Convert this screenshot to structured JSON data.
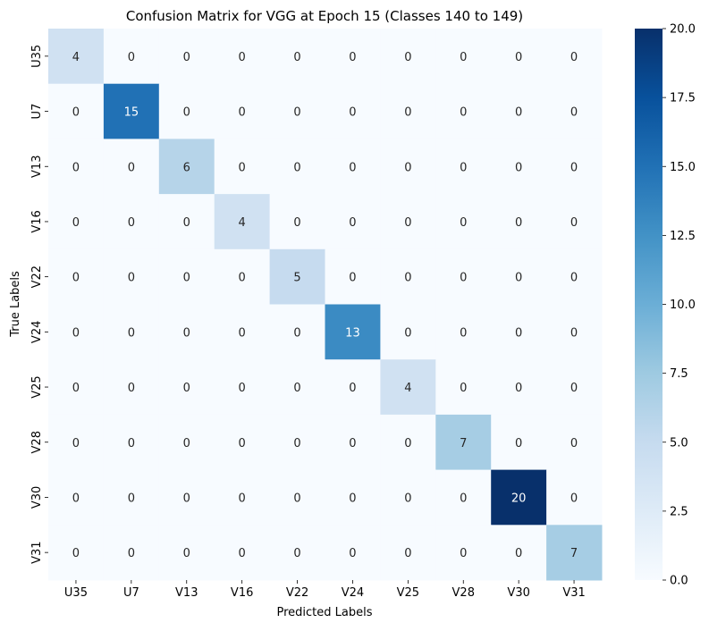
{
  "chart_data": {
    "type": "heatmap",
    "title": "Confusion Matrix for VGG at Epoch 15 (Classes 140 to 149)",
    "xlabel": "Predicted Labels",
    "ylabel": "True Labels",
    "x_categories": [
      "U35",
      "U7",
      "V13",
      "V16",
      "V22",
      "V24",
      "V25",
      "V28",
      "V30",
      "V31"
    ],
    "y_categories": [
      "U35",
      "U7",
      "V13",
      "V16",
      "V22",
      "V24",
      "V25",
      "V28",
      "V30",
      "V31"
    ],
    "values": [
      [
        4,
        0,
        0,
        0,
        0,
        0,
        0,
        0,
        0,
        0
      ],
      [
        0,
        15,
        0,
        0,
        0,
        0,
        0,
        0,
        0,
        0
      ],
      [
        0,
        0,
        6,
        0,
        0,
        0,
        0,
        0,
        0,
        0
      ],
      [
        0,
        0,
        0,
        4,
        0,
        0,
        0,
        0,
        0,
        0
      ],
      [
        0,
        0,
        0,
        0,
        5,
        0,
        0,
        0,
        0,
        0
      ],
      [
        0,
        0,
        0,
        0,
        0,
        13,
        0,
        0,
        0,
        0
      ],
      [
        0,
        0,
        0,
        0,
        0,
        0,
        4,
        0,
        0,
        0
      ],
      [
        0,
        0,
        0,
        0,
        0,
        0,
        0,
        7,
        0,
        0
      ],
      [
        0,
        0,
        0,
        0,
        0,
        0,
        0,
        0,
        20,
        0
      ],
      [
        0,
        0,
        0,
        0,
        0,
        0,
        0,
        0,
        0,
        7
      ]
    ],
    "colormap": "Blues",
    "vmin": 0,
    "vmax": 20,
    "colorbar_ticks": [
      "0.0",
      "2.5",
      "5.0",
      "7.5",
      "10.0",
      "12.5",
      "15.0",
      "17.5",
      "20.0"
    ],
    "annotated": true
  }
}
